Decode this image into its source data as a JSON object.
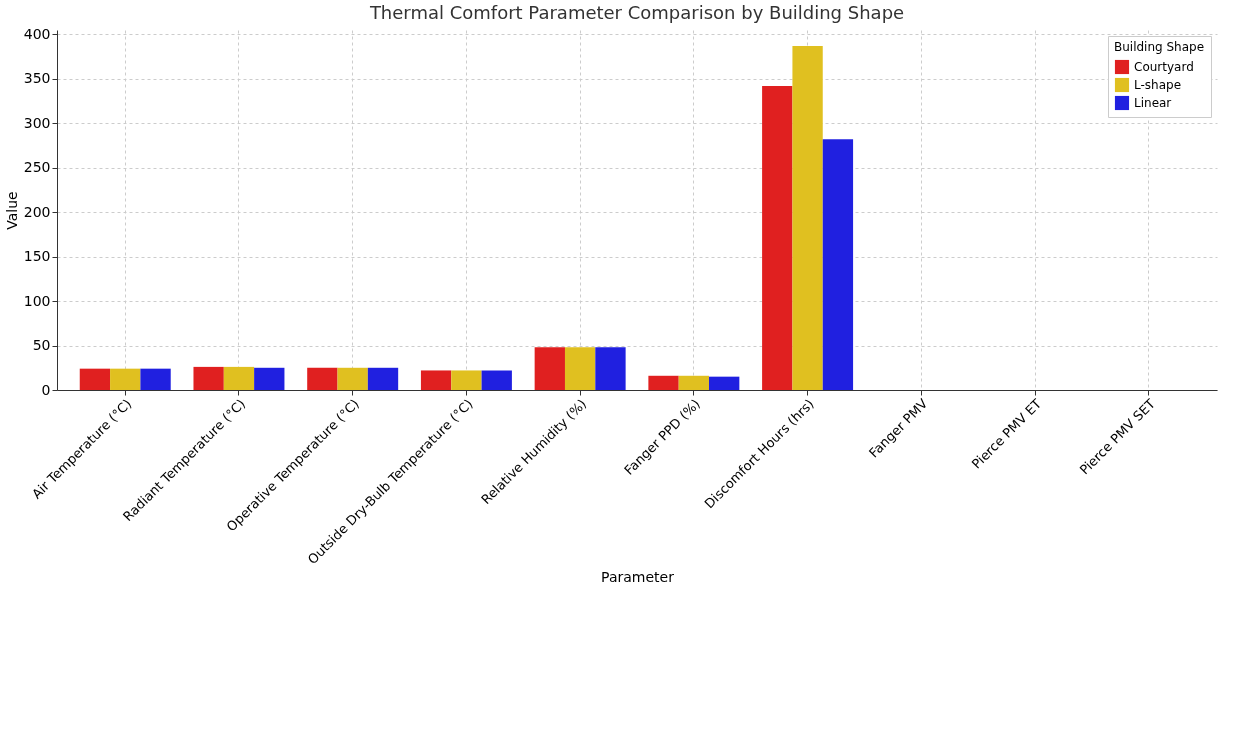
{
  "chart_data": {
    "type": "bar",
    "title": "Thermal Comfort Parameter Comparison by Building Shape",
    "xlabel": "Parameter",
    "ylabel": "Value",
    "legend_title": "Building Shape",
    "categories": [
      "Air Temperature (°C)",
      "Radiant Temperature (°C)",
      "Operative Temperature (°C)",
      "Outside Dry-Bulb Temperature (°C)",
      "Relative Humidity (%)",
      "Fanger PPD (%)",
      "Discomfort Hours (hrs)",
      "Fanger PMV",
      "Pierce PMV ET",
      "Pierce PMV SET"
    ],
    "series": [
      {
        "name": "Courtyard",
        "color": "#e02020",
        "values": [
          24,
          26,
          25,
          22,
          48,
          16,
          342,
          0,
          0,
          0
        ]
      },
      {
        "name": "L-shape",
        "color": "#e0c020",
        "values": [
          24,
          26,
          25,
          22,
          48,
          16,
          387,
          0,
          0,
          0
        ]
      },
      {
        "name": "Linear",
        "color": "#2020e0",
        "values": [
          24,
          25,
          25,
          22,
          48,
          15,
          282,
          0,
          0,
          0
        ]
      }
    ],
    "ylim": [
      0,
      405
    ],
    "yticks": [
      0,
      50,
      100,
      150,
      200,
      250,
      300,
      350,
      400
    ],
    "grid": true,
    "legend": "top right"
  }
}
